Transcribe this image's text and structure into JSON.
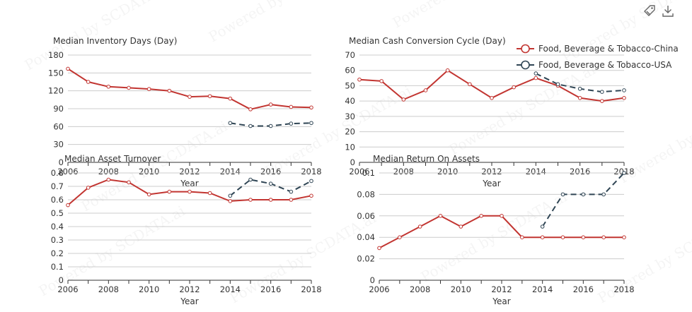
{
  "toolbar": {
    "icons": [
      "tag-icon",
      "download-icon"
    ]
  },
  "legend": {
    "placement": "top-right",
    "items": [
      {
        "label": "Food, Beverage & Tobacco-China",
        "color": "#c23531",
        "style": "solid"
      },
      {
        "label": "Food, Beverage & Tobacco-USA",
        "color": "#2f4554",
        "style": "dashed"
      }
    ]
  },
  "watermark": "Powered by SCDATA.ai",
  "chart_data": [
    {
      "type": "line",
      "title": "Median Inventory Days (Day)",
      "xlabel": "Year",
      "ylabel": "",
      "x_ticks": [
        "2006",
        "2008",
        "2010",
        "2012",
        "2014",
        "2016",
        "2018"
      ],
      "y_ticks": [
        "0",
        "30",
        "60",
        "90",
        "120",
        "150",
        "180"
      ],
      "ylim": [
        0,
        180
      ],
      "xlim": [
        2006,
        2018
      ],
      "grid": true,
      "series": [
        {
          "name": "Food, Beverage & Tobacco-China",
          "x": [
            2006,
            2007,
            2008,
            2009,
            2010,
            2011,
            2012,
            2013,
            2014,
            2015,
            2016,
            2017,
            2018
          ],
          "values": [
            157,
            135,
            127,
            125,
            123,
            120,
            110,
            111,
            107,
            89,
            97,
            93,
            92
          ]
        },
        {
          "name": "Food, Beverage & Tobacco-USA",
          "x": [
            2014,
            2015,
            2016,
            2017,
            2018
          ],
          "values": [
            66,
            61,
            61,
            65,
            66
          ]
        }
      ]
    },
    {
      "type": "line",
      "title": "Median Cash Conversion Cycle (Day)",
      "xlabel": "Year",
      "ylabel": "",
      "x_ticks": [
        "2006",
        "2008",
        "2010",
        "2012",
        "2014",
        "2016",
        "2018"
      ],
      "y_ticks": [
        "0",
        "10",
        "20",
        "30",
        "40",
        "50",
        "60",
        "70"
      ],
      "ylim": [
        0,
        70
      ],
      "xlim": [
        2006,
        2018
      ],
      "grid": true,
      "series": [
        {
          "name": "Food, Beverage & Tobacco-China",
          "x": [
            2006,
            2007,
            2008,
            2009,
            2010,
            2011,
            2012,
            2013,
            2014,
            2015,
            2016,
            2017,
            2018
          ],
          "values": [
            54,
            53,
            41,
            47,
            60,
            51,
            42,
            49,
            55,
            50,
            42,
            40,
            42
          ]
        },
        {
          "name": "Food, Beverage & Tobacco-USA",
          "x": [
            2014,
            2015,
            2016,
            2017,
            2018
          ],
          "values": [
            58,
            51,
            48,
            46,
            47
          ]
        }
      ]
    },
    {
      "type": "line",
      "title": "Median Asset Turnover",
      "xlabel": "Year",
      "ylabel": "",
      "x_ticks": [
        "2006",
        "2008",
        "2010",
        "2012",
        "2014",
        "2016",
        "2018"
      ],
      "y_ticks": [
        "0",
        "0.1",
        "0.2",
        "0.3",
        "0.4",
        "0.5",
        "0.6",
        "0.7",
        "0.8"
      ],
      "ylim": [
        0,
        0.8
      ],
      "xlim": [
        2006,
        2018
      ],
      "grid": true,
      "series": [
        {
          "name": "Food, Beverage & Tobacco-China",
          "x": [
            2006,
            2007,
            2008,
            2009,
            2010,
            2011,
            2012,
            2013,
            2014,
            2015,
            2016,
            2017,
            2018
          ],
          "values": [
            0.56,
            0.69,
            0.75,
            0.73,
            0.64,
            0.66,
            0.66,
            0.65,
            0.59,
            0.6,
            0.6,
            0.6,
            0.63
          ]
        },
        {
          "name": "Food, Beverage & Tobacco-USA",
          "x": [
            2014,
            2015,
            2016,
            2017,
            2018
          ],
          "values": [
            0.63,
            0.75,
            0.72,
            0.66,
            0.74
          ]
        }
      ]
    },
    {
      "type": "line",
      "title": "Median Return On Assets",
      "xlabel": "Year",
      "ylabel": "",
      "x_ticks": [
        "2006",
        "2008",
        "2010",
        "2012",
        "2014",
        "2016",
        "2018"
      ],
      "y_ticks": [
        "0",
        "0.02",
        "0.04",
        "0.06",
        "0.08",
        "0.1"
      ],
      "ylim": [
        0,
        0.1
      ],
      "xlim": [
        2006,
        2018
      ],
      "grid": true,
      "series": [
        {
          "name": "Food, Beverage & Tobacco-China",
          "x": [
            2006,
            2007,
            2008,
            2009,
            2010,
            2011,
            2012,
            2013,
            2014,
            2015,
            2016,
            2017,
            2018
          ],
          "values": [
            0.03,
            0.04,
            0.05,
            0.06,
            0.05,
            0.06,
            0.06,
            0.04,
            0.04,
            0.04,
            0.04,
            0.04,
            0.04
          ]
        },
        {
          "name": "Food, Beverage & Tobacco-USA",
          "x": [
            2014,
            2015,
            2016,
            2017,
            2018
          ],
          "values": [
            0.05,
            0.08,
            0.08,
            0.08,
            0.1
          ]
        }
      ]
    }
  ]
}
